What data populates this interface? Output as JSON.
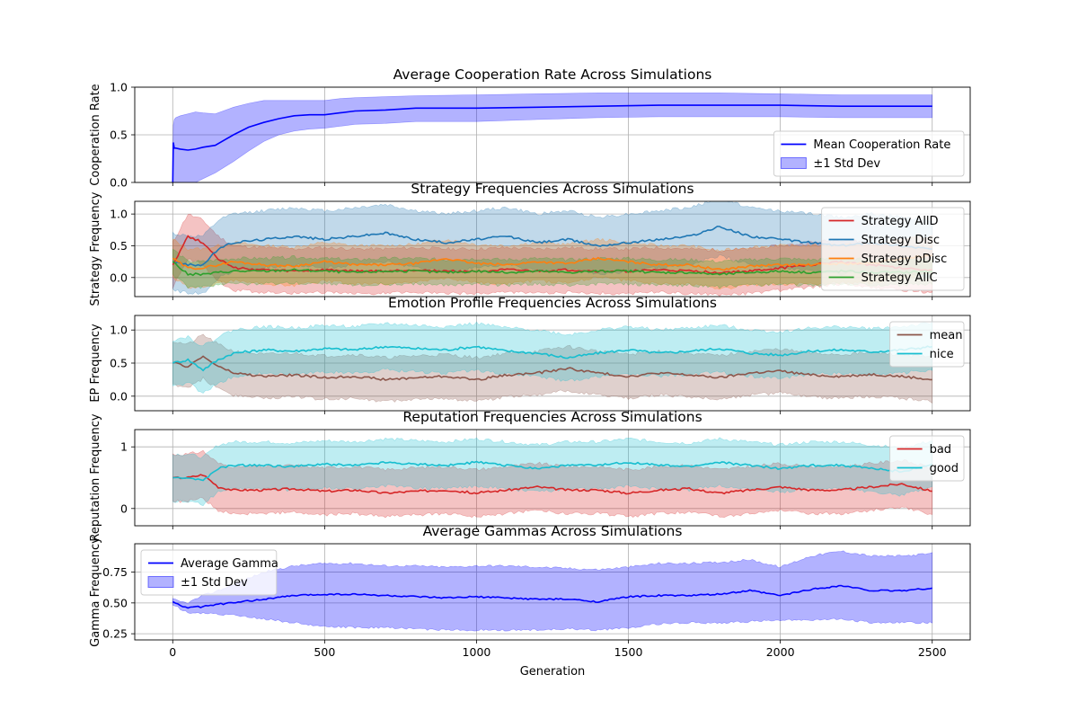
{
  "figure": {
    "xlabel": "Generation",
    "x_ticks": [
      0,
      500,
      1000,
      1500,
      2000,
      2500
    ],
    "x_range": [
      -125,
      2625
    ]
  },
  "colors": {
    "blue": "#0000ff",
    "tab_red": "#d62728",
    "tab_blue": "#1f77b4",
    "tab_orange": "#ff7f0e",
    "tab_green": "#2ca02c",
    "tab_brown": "#8c564b",
    "tab_cyan": "#17becf",
    "grid": "#b0b0b0"
  },
  "chart_data": [
    {
      "type": "line",
      "title": "Average Cooperation Rate Across Simulations",
      "ylabel": "Cooperation Rate",
      "ylim": [
        0,
        1
      ],
      "yticks": [
        "0.0",
        "0.5",
        "1.0"
      ],
      "yticks_values": [
        0,
        0.5,
        1
      ],
      "grid": true,
      "legend": "lower-right",
      "x": [
        0,
        2,
        5,
        10,
        25,
        50,
        75,
        100,
        140,
        200,
        250,
        300,
        350,
        400,
        450,
        500,
        550,
        600,
        700,
        800,
        1000,
        1200,
        1400,
        1600,
        1800,
        2000,
        2200,
        2400,
        2500
      ],
      "series": [
        {
          "name": "Mean Cooperation Rate",
          "color": "#0000ff",
          "values": [
            0.0,
            0.42,
            0.36,
            0.36,
            0.35,
            0.34,
            0.35,
            0.37,
            0.39,
            0.5,
            0.58,
            0.63,
            0.67,
            0.7,
            0.71,
            0.71,
            0.73,
            0.75,
            0.76,
            0.78,
            0.78,
            0.79,
            0.8,
            0.81,
            0.81,
            0.81,
            0.8,
            0.8,
            0.8
          ]
        },
        {
          "name": "±1 Std Dev",
          "color": "#0000ff",
          "kind": "band",
          "lower": [
            0.0,
            0.0,
            0.0,
            0.0,
            0.0,
            -0.02,
            0.0,
            0.04,
            0.1,
            0.22,
            0.33,
            0.43,
            0.5,
            0.54,
            0.56,
            0.57,
            0.59,
            0.61,
            0.62,
            0.64,
            0.64,
            0.66,
            0.68,
            0.69,
            0.69,
            0.69,
            0.68,
            0.68,
            0.68
          ],
          "upper": [
            0.0,
            0.6,
            0.66,
            0.68,
            0.7,
            0.72,
            0.74,
            0.73,
            0.72,
            0.79,
            0.83,
            0.86,
            0.86,
            0.86,
            0.86,
            0.86,
            0.88,
            0.89,
            0.9,
            0.91,
            0.92,
            0.93,
            0.94,
            0.94,
            0.94,
            0.93,
            0.92,
            0.92,
            0.92
          ]
        }
      ]
    },
    {
      "type": "line",
      "title": "Strategy Frequencies Across Simulations",
      "ylabel": "Strategy Frequency",
      "ylim": [
        -0.3,
        1.2
      ],
      "yticks": [
        "0.0",
        "0.5",
        "1.0"
      ],
      "yticks_values": [
        0,
        0.5,
        1
      ],
      "grid": true,
      "legend": "upper-right",
      "x": [
        0,
        50,
        100,
        150,
        200,
        300,
        400,
        500,
        600,
        700,
        800,
        900,
        1000,
        1100,
        1200,
        1300,
        1400,
        1500,
        1600,
        1700,
        1800,
        1900,
        2000,
        2100,
        2200,
        2300,
        2400,
        2500
      ],
      "series": [
        {
          "name": "Strategy AllD",
          "color": "#d62728",
          "values": [
            0.2,
            0.65,
            0.55,
            0.3,
            0.15,
            0.12,
            0.1,
            0.12,
            0.1,
            0.1,
            0.12,
            0.1,
            0.1,
            0.12,
            0.1,
            0.12,
            0.1,
            0.1,
            0.12,
            0.1,
            0.08,
            0.1,
            0.15,
            0.2,
            0.25,
            0.2,
            0.15,
            0.12
          ],
          "band_half_width": 0.35
        },
        {
          "name": "Strategy Disc",
          "color": "#1f77b4",
          "values": [
            0.25,
            0.2,
            0.2,
            0.45,
            0.55,
            0.6,
            0.65,
            0.6,
            0.65,
            0.7,
            0.6,
            0.55,
            0.6,
            0.65,
            0.55,
            0.6,
            0.5,
            0.55,
            0.6,
            0.65,
            0.8,
            0.65,
            0.6,
            0.55,
            0.5,
            0.55,
            0.5,
            0.45
          ],
          "band_half_width": 0.45
        },
        {
          "name": "Strategy pDisc",
          "color": "#ff7f0e",
          "values": [
            0.3,
            0.15,
            0.15,
            0.2,
            0.25,
            0.2,
            0.18,
            0.25,
            0.2,
            0.2,
            0.22,
            0.3,
            0.22,
            0.2,
            0.25,
            0.22,
            0.3,
            0.25,
            0.2,
            0.2,
            0.12,
            0.18,
            0.2,
            0.2,
            0.22,
            0.22,
            0.3,
            0.35
          ],
          "band_half_width": 0.3
        },
        {
          "name": "Strategy AllC",
          "color": "#2ca02c",
          "values": [
            0.25,
            0.05,
            0.05,
            0.08,
            0.1,
            0.1,
            0.12,
            0.1,
            0.08,
            0.1,
            0.1,
            0.08,
            0.1,
            0.08,
            0.1,
            0.08,
            0.1,
            0.1,
            0.08,
            0.08,
            0.05,
            0.08,
            0.1,
            0.08,
            0.1,
            0.08,
            0.08,
            0.1
          ],
          "band_half_width": 0.2
        }
      ]
    },
    {
      "type": "line",
      "title": "Emotion Profile Frequencies Across Simulations",
      "ylabel": "EP Frequency",
      "ylim": [
        -0.22,
        1.22
      ],
      "yticks": [
        "0.0",
        "0.5",
        "1.0"
      ],
      "yticks_values": [
        0,
        0.5,
        1
      ],
      "grid": true,
      "legend": "upper-right",
      "x": [
        0,
        50,
        100,
        150,
        200,
        300,
        400,
        500,
        600,
        700,
        800,
        900,
        1000,
        1100,
        1200,
        1300,
        1400,
        1500,
        1600,
        1700,
        1800,
        1900,
        2000,
        2100,
        2200,
        2300,
        2400,
        2500
      ],
      "series": [
        {
          "name": "mean",
          "color": "#8c564b",
          "values": [
            0.5,
            0.45,
            0.6,
            0.45,
            0.35,
            0.3,
            0.32,
            0.28,
            0.3,
            0.25,
            0.28,
            0.3,
            0.25,
            0.32,
            0.35,
            0.42,
            0.35,
            0.3,
            0.35,
            0.32,
            0.28,
            0.35,
            0.38,
            0.32,
            0.3,
            0.33,
            0.3,
            0.25
          ],
          "band_half_width": 0.33
        },
        {
          "name": "nice",
          "color": "#17becf",
          "values": [
            0.5,
            0.55,
            0.4,
            0.55,
            0.65,
            0.7,
            0.68,
            0.72,
            0.7,
            0.75,
            0.72,
            0.7,
            0.75,
            0.68,
            0.65,
            0.58,
            0.65,
            0.7,
            0.65,
            0.68,
            0.72,
            0.65,
            0.62,
            0.68,
            0.7,
            0.67,
            0.7,
            0.75
          ],
          "band_half_width": 0.35
        }
      ]
    },
    {
      "type": "line",
      "title": "Reputation Frequencies Across Simulations",
      "ylabel": "Reputation Frequency",
      "ylim": [
        -0.28,
        1.28
      ],
      "yticks": [
        "0",
        "1"
      ],
      "yticks_values": [
        0,
        1
      ],
      "grid": true,
      "legend": "upper-right",
      "x": [
        0,
        50,
        100,
        150,
        200,
        300,
        400,
        500,
        600,
        700,
        800,
        900,
        1000,
        1100,
        1200,
        1300,
        1400,
        1500,
        1600,
        1700,
        1800,
        1900,
        2000,
        2100,
        2200,
        2300,
        2400,
        2500
      ],
      "series": [
        {
          "name": "bad",
          "color": "#d62728",
          "values": [
            0.5,
            0.5,
            0.55,
            0.35,
            0.3,
            0.3,
            0.32,
            0.28,
            0.3,
            0.25,
            0.28,
            0.3,
            0.25,
            0.3,
            0.35,
            0.3,
            0.3,
            0.25,
            0.3,
            0.32,
            0.25,
            0.3,
            0.35,
            0.3,
            0.3,
            0.35,
            0.4,
            0.28
          ],
          "band_half_width": 0.38
        },
        {
          "name": "good",
          "color": "#17becf",
          "values": [
            0.5,
            0.5,
            0.45,
            0.65,
            0.7,
            0.7,
            0.68,
            0.72,
            0.7,
            0.75,
            0.72,
            0.7,
            0.75,
            0.7,
            0.65,
            0.7,
            0.7,
            0.75,
            0.7,
            0.68,
            0.75,
            0.7,
            0.65,
            0.7,
            0.7,
            0.65,
            0.6,
            0.72
          ],
          "band_half_width": 0.38
        }
      ]
    },
    {
      "type": "line",
      "title": "Average Gammas Across Simulations",
      "ylabel": "Gamma Frequency",
      "ylim": [
        0.2,
        0.98
      ],
      "yticks": [
        "0.25",
        "0.50",
        "0.75"
      ],
      "yticks_values": [
        0.25,
        0.5,
        0.75
      ],
      "grid": true,
      "legend": "upper-left",
      "x": [
        0,
        25,
        50,
        100,
        150,
        200,
        300,
        400,
        500,
        600,
        700,
        800,
        900,
        1000,
        1100,
        1200,
        1300,
        1400,
        1500,
        1600,
        1700,
        1800,
        1900,
        2000,
        2100,
        2200,
        2300,
        2400,
        2500
      ],
      "series": [
        {
          "name": "Average Gamma",
          "color": "#0000ff",
          "values": [
            0.51,
            0.48,
            0.46,
            0.47,
            0.49,
            0.5,
            0.53,
            0.56,
            0.57,
            0.57,
            0.56,
            0.55,
            0.54,
            0.55,
            0.54,
            0.53,
            0.53,
            0.51,
            0.55,
            0.56,
            0.56,
            0.57,
            0.6,
            0.56,
            0.61,
            0.64,
            0.6,
            0.6,
            0.62
          ]
        },
        {
          "name": "±1 Std Dev",
          "color": "#0000ff",
          "kind": "band",
          "lower": [
            0.49,
            0.45,
            0.42,
            0.42,
            0.41,
            0.4,
            0.37,
            0.34,
            0.31,
            0.3,
            0.3,
            0.29,
            0.28,
            0.28,
            0.28,
            0.28,
            0.29,
            0.28,
            0.3,
            0.33,
            0.34,
            0.34,
            0.35,
            0.36,
            0.36,
            0.37,
            0.34,
            0.34,
            0.34
          ],
          "upper": [
            0.53,
            0.51,
            0.5,
            0.56,
            0.6,
            0.65,
            0.75,
            0.8,
            0.82,
            0.82,
            0.8,
            0.8,
            0.79,
            0.8,
            0.8,
            0.79,
            0.78,
            0.77,
            0.79,
            0.82,
            0.82,
            0.83,
            0.85,
            0.79,
            0.88,
            0.92,
            0.88,
            0.88,
            0.9
          ]
        }
      ]
    }
  ]
}
